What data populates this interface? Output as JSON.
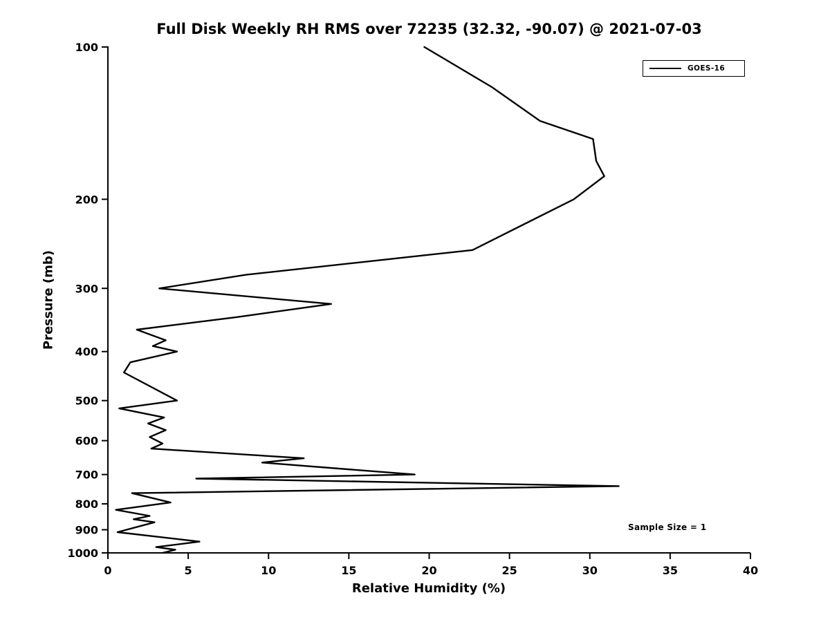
{
  "chart_data": {
    "type": "line",
    "title": "Full Disk Weekly RH RMS over 72235 (32.32, -90.07) @ 2021-07-03",
    "xlabel": "Relative Humidity (%)",
    "ylabel": "Pressure (mb)",
    "xlim": [
      0,
      40
    ],
    "ylim": [
      100,
      1000
    ],
    "y_scale": "log",
    "y_inverted": true,
    "grid": false,
    "x_ticks": [
      0,
      5,
      10,
      15,
      20,
      25,
      30,
      35,
      40
    ],
    "y_ticks": [
      100,
      200,
      300,
      400,
      500,
      600,
      700,
      800,
      900,
      1000
    ],
    "legend": {
      "position": "upper right",
      "entries": [
        {
          "label": "GOES-16",
          "color": "#000000"
        }
      ]
    },
    "annotation": "Sample Size = 1",
    "line_color": "#000000",
    "background_color": "#ffffff",
    "series": [
      {
        "name": "GOES-16",
        "color": "#000000",
        "points_format": "[pressure_mb, rh_percent]",
        "points": [
          [
            100,
            19.7
          ],
          [
            120,
            23.9
          ],
          [
            140,
            26.9
          ],
          [
            152,
            30.2
          ],
          [
            168,
            30.4
          ],
          [
            180,
            30.9
          ],
          [
            200,
            29.0
          ],
          [
            252,
            22.7
          ],
          [
            282,
            8.6
          ],
          [
            300,
            3.2
          ],
          [
            322,
            13.9
          ],
          [
            342,
            8.0
          ],
          [
            362,
            1.8
          ],
          [
            380,
            3.6
          ],
          [
            390,
            2.8
          ],
          [
            400,
            4.3
          ],
          [
            420,
            1.4
          ],
          [
            440,
            1.0
          ],
          [
            500,
            4.3
          ],
          [
            518,
            0.7
          ],
          [
            540,
            3.5
          ],
          [
            555,
            2.5
          ],
          [
            572,
            3.6
          ],
          [
            590,
            2.6
          ],
          [
            608,
            3.4
          ],
          [
            622,
            2.7
          ],
          [
            650,
            12.2
          ],
          [
            663,
            9.6
          ],
          [
            700,
            19.1
          ],
          [
            713,
            5.5
          ],
          [
            738,
            31.8
          ],
          [
            762,
            1.5
          ],
          [
            795,
            3.9
          ],
          [
            822,
            0.5
          ],
          [
            845,
            2.6
          ],
          [
            858,
            1.6
          ],
          [
            870,
            2.9
          ],
          [
            910,
            0.6
          ],
          [
            950,
            5.7
          ],
          [
            974,
            3.0
          ],
          [
            986,
            4.2
          ],
          [
            1000,
            3.4
          ]
        ]
      }
    ]
  }
}
